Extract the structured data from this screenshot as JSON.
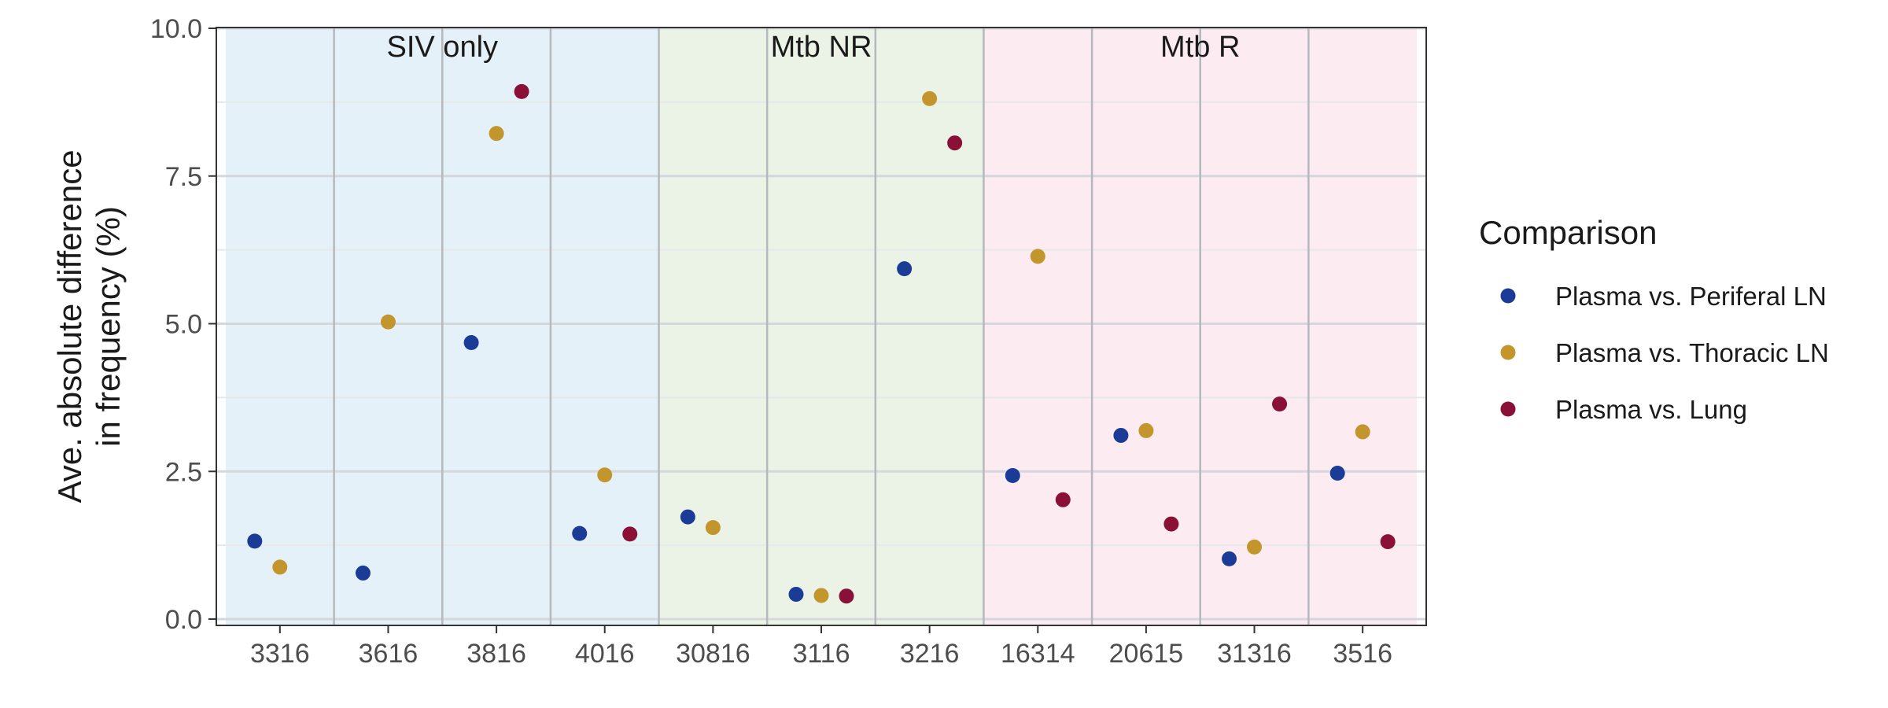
{
  "chart_data": {
    "type": "scatter",
    "ylabel_lines": [
      "Ave. absolute difference",
      "in frequency (%)"
    ],
    "ylim": [
      0,
      10
    ],
    "yticks": [
      "0.0",
      "2.5",
      "5.0",
      "7.5",
      "10.0"
    ],
    "ytick_values": [
      0,
      2.5,
      5,
      7.5,
      10
    ],
    "categories": [
      "3316",
      "3616",
      "3816",
      "4016",
      "30816",
      "3116",
      "3216",
      "16314",
      "20615",
      "31316",
      "3516"
    ],
    "groups": [
      {
        "label": "SIV only",
        "from": 0,
        "to": 3,
        "color": "#e5f1f9"
      },
      {
        "label": "Mtb NR",
        "from": 4,
        "to": 6,
        "color": "#ebf3e6"
      },
      {
        "label": "Mtb R",
        "from": 7,
        "to": 10,
        "color": "#fcebf1"
      }
    ],
    "legend": {
      "title": "Comparison",
      "position": "right"
    },
    "grid": true,
    "series": [
      {
        "name": "Plasma vs. Periferal LN",
        "color": "#1a3c96",
        "values": [
          1.32,
          0.78,
          4.68,
          1.45,
          1.73,
          0.42,
          5.93,
          2.43,
          3.11,
          1.02,
          2.47
        ]
      },
      {
        "name": "Plasma vs. Thoracic LN",
        "color": "#c3962d",
        "values": [
          0.88,
          5.03,
          8.22,
          2.44,
          1.55,
          0.4,
          8.81,
          6.14,
          3.19,
          1.22,
          3.17
        ]
      },
      {
        "name": "Plasma vs. Lung",
        "color": "#8b1038",
        "values": [
          null,
          null,
          8.93,
          1.44,
          null,
          0.39,
          8.06,
          2.02,
          1.61,
          3.64,
          1.31
        ]
      }
    ]
  }
}
